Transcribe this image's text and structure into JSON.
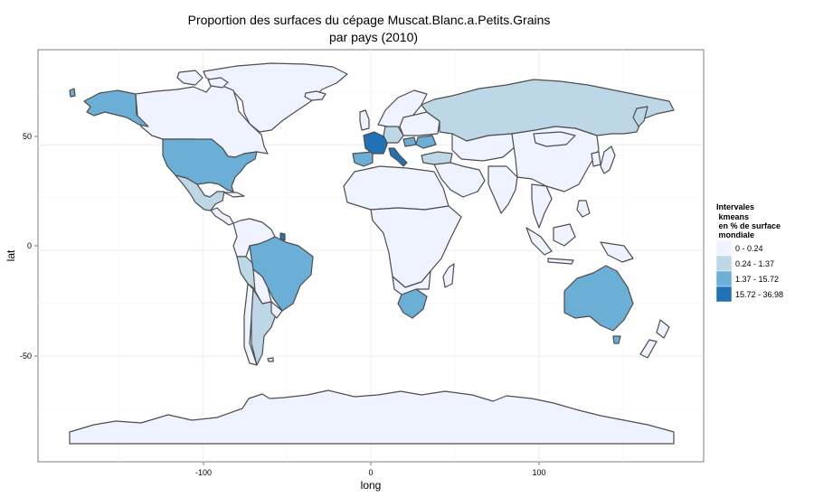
{
  "chart_data": {
    "type": "choropleth",
    "title": "Proportion des surfaces du cépage Muscat.Blanc.a.Petits.Grains",
    "subtitle": "par pays (2010)",
    "xlabel": "long",
    "ylabel": "lat",
    "x_ticks": [
      -100,
      0,
      100
    ],
    "y_ticks": [
      50,
      0,
      -50
    ],
    "xlim": [
      -198,
      198
    ],
    "ylim": [
      -100,
      95
    ],
    "grid": true,
    "legend": {
      "title_lines": [
        "Intervales",
        " kmeans",
        " en % de surface",
        " mondiale"
      ],
      "position": "right",
      "classes": [
        {
          "label": "0 - 0.24",
          "color": "#eff3ff"
        },
        {
          "label": "0.24 - 1.37",
          "color": "#bdd7e7"
        },
        {
          "label": "1.37 - 15.72",
          "color": "#6baed6"
        },
        {
          "label": "15.72 - 36.98",
          "color": "#2171b5"
        }
      ]
    },
    "countries": [
      {
        "name": "France",
        "class": 3
      },
      {
        "name": "Italy",
        "class": 3
      },
      {
        "name": "French Guiana",
        "class": 3
      },
      {
        "name": "United States",
        "class": 2
      },
      {
        "name": "Alaska",
        "class": 2
      },
      {
        "name": "Brazil",
        "class": 2
      },
      {
        "name": "Australia",
        "class": 2
      },
      {
        "name": "South Africa",
        "class": 2
      },
      {
        "name": "Spain",
        "class": 2
      },
      {
        "name": "Hungary",
        "class": 2
      },
      {
        "name": "Romania",
        "class": 2
      },
      {
        "name": "Russia",
        "class": 1
      },
      {
        "name": "Mexico",
        "class": 1
      },
      {
        "name": "Argentina",
        "class": 1
      },
      {
        "name": "Peru",
        "class": 1
      },
      {
        "name": "Turkey",
        "class": 1
      },
      {
        "name": "Germany",
        "class": 1
      },
      {
        "name": "Canada",
        "class": 0
      },
      {
        "name": "China",
        "class": 0
      },
      {
        "name": "Antarctica",
        "class": 0
      }
    ]
  }
}
